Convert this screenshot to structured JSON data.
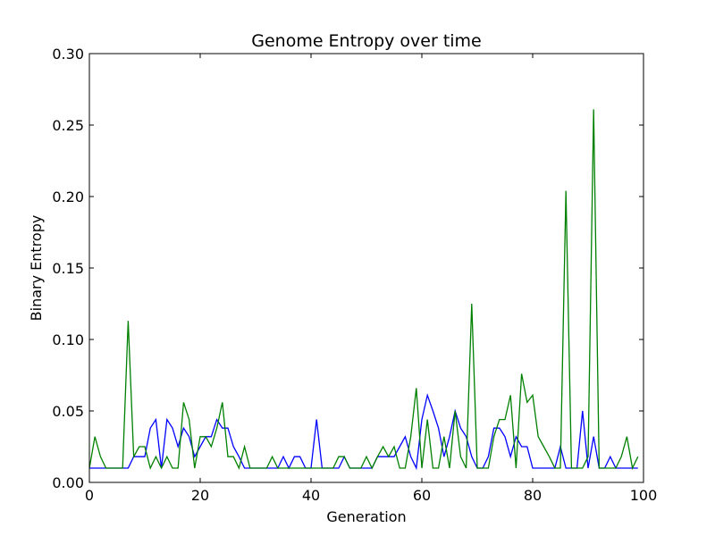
{
  "chart_data": {
    "type": "line",
    "title": "Genome Entropy over time",
    "xlabel": "Generation",
    "ylabel": "Binary Entropy",
    "xlim": [
      0,
      100
    ],
    "ylim": [
      0,
      0.3
    ],
    "grid": false,
    "x_ticks": [
      0,
      20,
      40,
      60,
      80,
      100
    ],
    "x_tick_labels": [
      "0",
      "20",
      "40",
      "60",
      "80",
      "100"
    ],
    "y_ticks": [
      0,
      0.05,
      0.1,
      0.15,
      0.2,
      0.25,
      0.3
    ],
    "y_tick_labels": [
      "0.00",
      "0.05",
      "0.10",
      "0.15",
      "0.20",
      "0.25",
      "0.30"
    ],
    "series": [
      {
        "color": "#0000ff",
        "x": [
          0,
          1,
          2,
          3,
          4,
          5,
          6,
          7,
          8,
          9,
          10,
          11,
          12,
          13,
          14,
          15,
          16,
          17,
          18,
          19,
          20,
          21,
          22,
          23,
          24,
          25,
          26,
          27,
          28,
          29,
          30,
          31,
          32,
          33,
          34,
          35,
          36,
          37,
          38,
          39,
          40,
          41,
          42,
          43,
          44,
          45,
          46,
          47,
          48,
          49,
          50,
          51,
          52,
          53,
          54,
          55,
          56,
          57,
          58,
          59,
          60,
          61,
          62,
          63,
          64,
          65,
          66,
          67,
          68,
          69,
          70,
          71,
          72,
          73,
          74,
          75,
          76,
          77,
          78,
          79,
          80,
          81,
          82,
          83,
          84,
          85,
          86,
          87,
          88,
          89,
          90,
          91,
          92,
          93,
          94,
          95,
          96,
          97,
          98,
          99
        ],
        "values": [
          0.01,
          0.01,
          0.01,
          0.01,
          0.01,
          0.01,
          0.01,
          0.01,
          0.018,
          0.018,
          0.018,
          0.038,
          0.044,
          0.01,
          0.044,
          0.038,
          0.025,
          0.038,
          0.032,
          0.018,
          0.025,
          0.032,
          0.032,
          0.044,
          0.038,
          0.038,
          0.025,
          0.018,
          0.01,
          0.01,
          0.01,
          0.01,
          0.01,
          0.01,
          0.01,
          0.018,
          0.01,
          0.018,
          0.018,
          0.01,
          0.01,
          0.044,
          0.01,
          0.01,
          0.01,
          0.01,
          0.018,
          0.01,
          0.01,
          0.01,
          0.01,
          0.01,
          0.018,
          0.018,
          0.018,
          0.018,
          0.025,
          0.032,
          0.018,
          0.01,
          0.044,
          0.061,
          0.05,
          0.038,
          0.018,
          0.032,
          0.05,
          0.038,
          0.032,
          0.018,
          0.01,
          0.01,
          0.018,
          0.038,
          0.038,
          0.032,
          0.018,
          0.032,
          0.025,
          0.025,
          0.01,
          0.01,
          0.01,
          0.01,
          0.01,
          0.025,
          0.01,
          0.01,
          0.01,
          0.05,
          0.01,
          0.032,
          0.01,
          0.01,
          0.018,
          0.01,
          0.01,
          0.01,
          0.01,
          0.01
        ]
      },
      {
        "color": "#008000",
        "x": [
          0,
          1,
          2,
          3,
          4,
          5,
          6,
          7,
          8,
          9,
          10,
          11,
          12,
          13,
          14,
          15,
          16,
          17,
          18,
          19,
          20,
          21,
          22,
          23,
          24,
          25,
          26,
          27,
          28,
          29,
          30,
          31,
          32,
          33,
          34,
          35,
          36,
          37,
          38,
          39,
          40,
          41,
          42,
          43,
          44,
          45,
          46,
          47,
          48,
          49,
          50,
          51,
          52,
          53,
          54,
          55,
          56,
          57,
          58,
          59,
          60,
          61,
          62,
          63,
          64,
          65,
          66,
          67,
          68,
          69,
          70,
          71,
          72,
          73,
          74,
          75,
          76,
          77,
          78,
          79,
          80,
          81,
          82,
          83,
          84,
          85,
          86,
          87,
          88,
          89,
          90,
          91,
          92,
          93,
          94,
          95,
          96,
          97,
          98,
          99
        ],
        "values": [
          0.01,
          0.032,
          0.018,
          0.01,
          0.01,
          0.01,
          0.01,
          0.113,
          0.018,
          0.025,
          0.025,
          0.01,
          0.018,
          0.01,
          0.018,
          0.01,
          0.01,
          0.056,
          0.044,
          0.01,
          0.032,
          0.032,
          0.025,
          0.038,
          0.056,
          0.018,
          0.018,
          0.01,
          0.025,
          0.01,
          0.01,
          0.01,
          0.01,
          0.018,
          0.01,
          0.01,
          0.01,
          0.01,
          0.01,
          0.01,
          0.01,
          0.01,
          0.01,
          0.01,
          0.01,
          0.018,
          0.018,
          0.01,
          0.01,
          0.01,
          0.018,
          0.01,
          0.018,
          0.025,
          0.018,
          0.025,
          0.01,
          0.01,
          0.032,
          0.066,
          0.01,
          0.044,
          0.01,
          0.01,
          0.032,
          0.01,
          0.05,
          0.018,
          0.01,
          0.125,
          0.01,
          0.01,
          0.01,
          0.032,
          0.044,
          0.044,
          0.061,
          0.01,
          0.076,
          0.056,
          0.061,
          0.032,
          0.025,
          0.018,
          0.01,
          0.01,
          0.204,
          0.01,
          0.01,
          0.01,
          0.018,
          0.261,
          0.01,
          0.01,
          0.01,
          0.01,
          0.018,
          0.032,
          0.01,
          0.018
        ]
      }
    ]
  }
}
